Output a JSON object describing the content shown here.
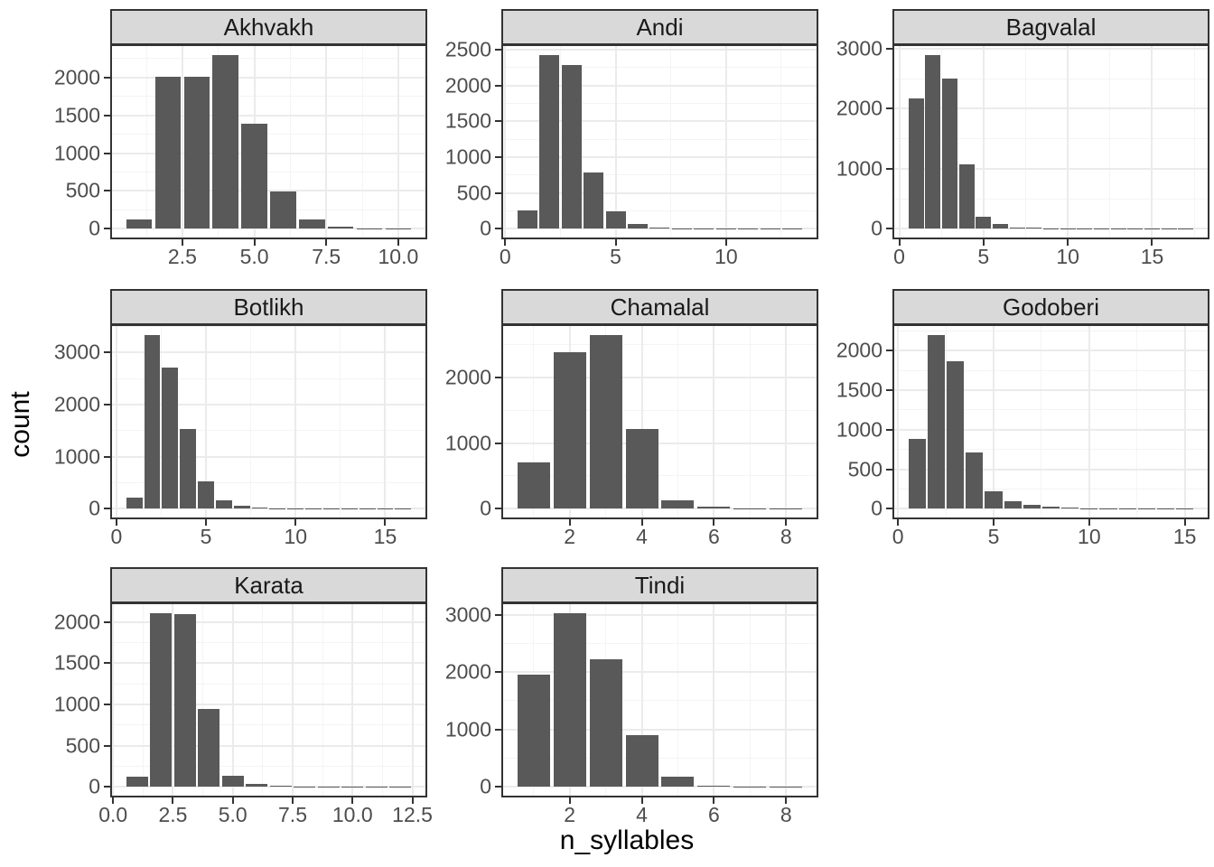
{
  "chart_data": {
    "type": "bar",
    "subtype": "faceted-histograms",
    "xlabel": "n_syllables",
    "ylabel": "count",
    "legend": "none",
    "grid": "on",
    "bar_width": 0.9,
    "facets": [
      {
        "title": "Akhvakh",
        "row": 0,
        "col": 0,
        "x": [
          1,
          2,
          3,
          4,
          5,
          6,
          7,
          8,
          9,
          10
        ],
        "counts": [
          120,
          2010,
          2010,
          2300,
          1390,
          490,
          120,
          30,
          8,
          4
        ],
        "xlim": [
          0.055,
          10.945
        ],
        "ylim": [
          -115,
          2415
        ],
        "x_tick_values": [
          2.5,
          5,
          7.5,
          10
        ],
        "x_tick_labels": [
          "2.5",
          "5.0",
          "7.5",
          "10.0"
        ],
        "y_tick_values": [
          0,
          500,
          1000,
          1500,
          2000
        ],
        "y_tick_labels": [
          "0",
          "500",
          "1000",
          "1500",
          "2000"
        ]
      },
      {
        "title": "Andi",
        "row": 0,
        "col": 1,
        "x": [
          1,
          2,
          3,
          4,
          5,
          6,
          7,
          8,
          9,
          10,
          11,
          12,
          13
        ],
        "counts": [
          260,
          2430,
          2290,
          780,
          240,
          65,
          15,
          6,
          3,
          2,
          1,
          1,
          1
        ],
        "xlim": [
          -0.095,
          14.095
        ],
        "ylim": [
          -122,
          2552
        ],
        "x_tick_values": [
          0,
          5,
          10
        ],
        "x_tick_labels": [
          "0",
          "5",
          "10"
        ],
        "y_tick_values": [
          0,
          500,
          1000,
          1500,
          2000,
          2500
        ],
        "y_tick_labels": [
          "0",
          "500",
          "1000",
          "1500",
          "2000",
          "2500"
        ]
      },
      {
        "title": "Bagvalal",
        "row": 0,
        "col": 2,
        "x": [
          1,
          2,
          3,
          4,
          5,
          6,
          7,
          8,
          9,
          10,
          11,
          12,
          13,
          14,
          15,
          16,
          17
        ],
        "counts": [
          2170,
          2900,
          2500,
          1080,
          195,
          80,
          28,
          18,
          9,
          5,
          3,
          2,
          2,
          1,
          1,
          1,
          1
        ],
        "xlim": [
          -0.295,
          18.295
        ],
        "ylim": [
          -145,
          3045
        ],
        "x_tick_values": [
          0,
          5,
          10,
          15
        ],
        "x_tick_labels": [
          "0",
          "5",
          "10",
          "15"
        ],
        "y_tick_values": [
          0,
          1000,
          2000,
          3000
        ],
        "y_tick_labels": [
          "0",
          "1000",
          "2000",
          "3000"
        ]
      },
      {
        "title": "Botlikh",
        "row": 1,
        "col": 0,
        "x": [
          1,
          2,
          3,
          4,
          5,
          6,
          7,
          8,
          9,
          10,
          11,
          12,
          13,
          14,
          15,
          16
        ],
        "counts": [
          220,
          3340,
          2710,
          1530,
          520,
          170,
          60,
          28,
          14,
          6,
          3,
          2,
          1,
          1,
          1,
          1
        ],
        "xlim": [
          -0.245,
          17.245
        ],
        "ylim": [
          -167,
          3507
        ],
        "x_tick_values": [
          0,
          5,
          10,
          15
        ],
        "x_tick_labels": [
          "0",
          "5",
          "10",
          "15"
        ],
        "y_tick_values": [
          0,
          1000,
          2000,
          3000
        ],
        "y_tick_labels": [
          "0",
          "1000",
          "2000",
          "3000"
        ]
      },
      {
        "title": "Chamalal",
        "row": 1,
        "col": 1,
        "x": [
          1,
          2,
          3,
          4,
          5,
          6,
          7,
          8
        ],
        "counts": [
          700,
          2380,
          2650,
          1220,
          130,
          30,
          6,
          2
        ],
        "xlim": [
          0.155,
          8.845
        ],
        "ylim": [
          -133,
          2783
        ],
        "x_tick_values": [
          2,
          4,
          6,
          8
        ],
        "x_tick_labels": [
          "2",
          "4",
          "6",
          "8"
        ],
        "y_tick_values": [
          0,
          1000,
          2000
        ],
        "y_tick_labels": [
          "0",
          "1000",
          "2000"
        ]
      },
      {
        "title": "Godoberi",
        "row": 1,
        "col": 2,
        "x": [
          1,
          2,
          3,
          4,
          5,
          6,
          7,
          8,
          9,
          10,
          11,
          12,
          13,
          14,
          15
        ],
        "counts": [
          880,
          2200,
          1860,
          710,
          220,
          100,
          45,
          22,
          10,
          5,
          3,
          2,
          1,
          1,
          1
        ],
        "xlim": [
          -0.195,
          16.195
        ],
        "ylim": [
          -110,
          2310
        ],
        "x_tick_values": [
          0,
          5,
          10,
          15
        ],
        "x_tick_labels": [
          "0",
          "5",
          "10",
          "15"
        ],
        "y_tick_values": [
          0,
          500,
          1000,
          1500,
          2000
        ],
        "y_tick_labels": [
          "0",
          "500",
          "1000",
          "1500",
          "2000"
        ]
      },
      {
        "title": "Karata",
        "row": 2,
        "col": 0,
        "x": [
          1,
          2,
          3,
          4,
          5,
          6,
          7,
          8,
          9,
          10,
          11,
          12
        ],
        "counts": [
          125,
          2110,
          2100,
          950,
          140,
          40,
          12,
          5,
          2,
          1,
          1,
          1
        ],
        "xlim": [
          -0.045,
          13.045
        ],
        "ylim": [
          -106,
          2216
        ],
        "x_tick_values": [
          0,
          2.5,
          5,
          7.5,
          10,
          12.5
        ],
        "x_tick_labels": [
          "0.0",
          "2.5",
          "5.0",
          "7.5",
          "10.0",
          "12.5"
        ],
        "y_tick_values": [
          0,
          500,
          1000,
          1500,
          2000
        ],
        "y_tick_labels": [
          "0",
          "500",
          "1000",
          "1500",
          "2000"
        ]
      },
      {
        "title": "Tindi",
        "row": 2,
        "col": 1,
        "x": [
          1,
          2,
          3,
          4,
          5,
          6,
          7,
          8
        ],
        "counts": [
          1950,
          3030,
          2230,
          900,
          180,
          28,
          6,
          2
        ],
        "xlim": [
          0.155,
          8.845
        ],
        "ylim": [
          -152,
          3182
        ],
        "x_tick_values": [
          2,
          4,
          6,
          8
        ],
        "x_tick_labels": [
          "2",
          "4",
          "6",
          "8"
        ],
        "y_tick_values": [
          0,
          1000,
          2000,
          3000
        ],
        "y_tick_labels": [
          "0",
          "1000",
          "2000",
          "3000"
        ]
      }
    ]
  },
  "colors": {
    "bar_fill": "#595959",
    "panel_background": "#ffffff",
    "grid_major": "#ebebeb",
    "grid_minor": "#f4f4f4",
    "panel_border": "#333333",
    "strip_background": "#d9d9d9",
    "strip_text": "#1a1a1a",
    "tick_text": "#4d4d4d",
    "axis_title_text": "#000000"
  }
}
